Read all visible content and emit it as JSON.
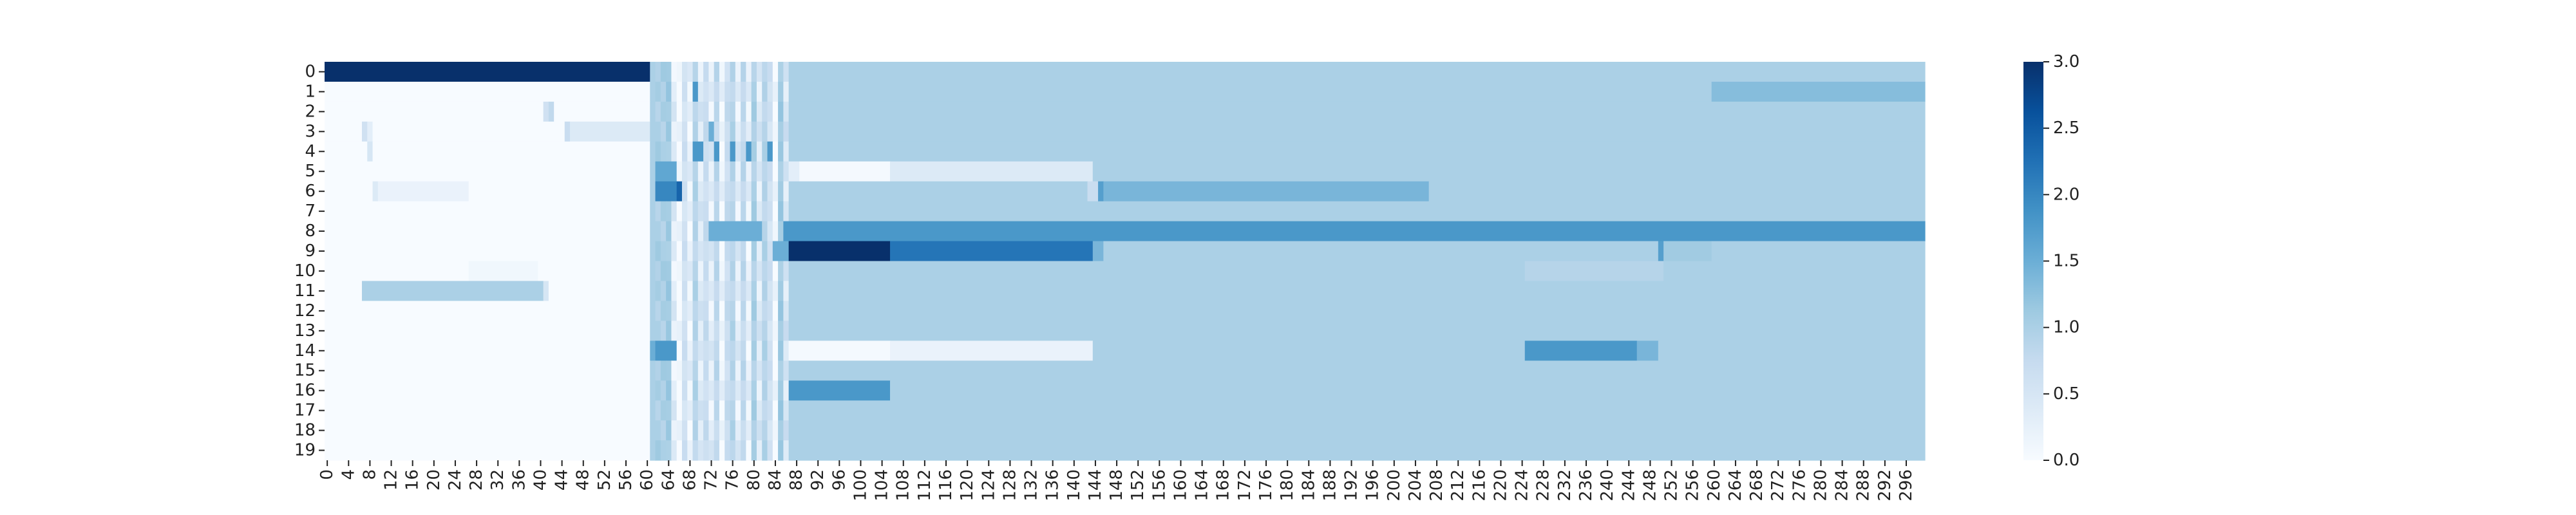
{
  "chart_data": {
    "type": "heatmap",
    "title": "",
    "xlabel": "",
    "ylabel": "",
    "n_rows": 20,
    "n_cols": 300,
    "row_labels": [
      "0",
      "1",
      "2",
      "3",
      "4",
      "5",
      "6",
      "7",
      "8",
      "9",
      "10",
      "11",
      "12",
      "13",
      "14",
      "15",
      "16",
      "17",
      "18",
      "19"
    ],
    "x_tick_labels": [
      "0",
      "4",
      "8",
      "12",
      "16",
      "20",
      "24",
      "28",
      "32",
      "36",
      "40",
      "44",
      "48",
      "52",
      "56",
      "60",
      "64",
      "68",
      "72",
      "76",
      "80",
      "84",
      "88",
      "92",
      "96",
      "100",
      "104",
      "108",
      "112",
      "116",
      "120",
      "124",
      "128",
      "132",
      "136",
      "140",
      "144",
      "148",
      "152",
      "156",
      "160",
      "164",
      "168",
      "172",
      "176",
      "180",
      "184",
      "188",
      "192",
      "196",
      "200",
      "204",
      "208",
      "212",
      "216",
      "220",
      "224",
      "228",
      "232",
      "236",
      "240",
      "244",
      "248",
      "252",
      "256",
      "260",
      "264",
      "268",
      "272",
      "276",
      "280",
      "284",
      "288",
      "292",
      "296"
    ],
    "vmin": 0,
    "vmax": 3,
    "colormap": "Blues",
    "colorbar": {
      "tick_values": [
        0,
        0.5,
        1,
        1.5,
        2,
        2.5,
        3
      ],
      "tick_labels": [
        "0.0",
        "0.5",
        "1.0",
        "1.5",
        "2.0",
        "2.5",
        "3.0"
      ]
    },
    "default_value": 1.0,
    "row_base": [
      {
        "row": 0,
        "segments": [
          [
            0,
            61,
            3.0
          ]
        ]
      },
      {
        "row": 1,
        "segments": [
          [
            0,
            61,
            0.0
          ],
          [
            260,
            300,
            1.3
          ]
        ]
      },
      {
        "row": 2,
        "segments": [
          [
            0,
            61,
            0.0
          ],
          [
            41,
            42,
            0.6
          ],
          [
            42,
            43,
            0.8
          ]
        ]
      },
      {
        "row": 3,
        "segments": [
          [
            0,
            61,
            0.0
          ],
          [
            7,
            8,
            0.6
          ],
          [
            8,
            9,
            0.3
          ],
          [
            45,
            46,
            0.7
          ],
          [
            46,
            61,
            0.4
          ]
        ]
      },
      {
        "row": 4,
        "segments": [
          [
            0,
            61,
            0.0
          ],
          [
            8,
            9,
            0.5
          ]
        ]
      },
      {
        "row": 5,
        "segments": [
          [
            0,
            61,
            0.0
          ],
          [
            87,
            89,
            0.3
          ],
          [
            89,
            106,
            0.05
          ],
          [
            106,
            144,
            0.4
          ]
        ]
      },
      {
        "row": 6,
        "segments": [
          [
            0,
            61,
            0.0
          ],
          [
            9,
            10,
            0.4
          ],
          [
            10,
            27,
            0.2
          ],
          [
            61,
            62,
            1.0
          ],
          [
            143,
            145,
            0.7
          ],
          [
            145,
            146,
            1.7
          ],
          [
            146,
            207,
            1.4
          ]
        ]
      },
      {
        "row": 7,
        "segments": [
          [
            0,
            61,
            0.0
          ]
        ]
      },
      {
        "row": 8,
        "segments": [
          [
            0,
            61,
            0.0
          ],
          [
            86,
            300,
            1.8
          ]
        ]
      },
      {
        "row": 9,
        "segments": [
          [
            0,
            61,
            0.0
          ],
          [
            87,
            106,
            3.0
          ],
          [
            106,
            144,
            2.2
          ],
          [
            144,
            146,
            1.4
          ],
          [
            250,
            251,
            1.7
          ],
          [
            251,
            260,
            1.1
          ]
        ]
      },
      {
        "row": 10,
        "segments": [
          [
            0,
            61,
            0.0
          ],
          [
            27,
            40,
            0.1
          ],
          [
            225,
            251,
            0.9
          ]
        ]
      },
      {
        "row": 11,
        "segments": [
          [
            0,
            61,
            0.0
          ],
          [
            7,
            41,
            1.0
          ],
          [
            41,
            42,
            0.5
          ]
        ]
      },
      {
        "row": 12,
        "segments": [
          [
            0,
            61,
            0.0
          ]
        ]
      },
      {
        "row": 13,
        "segments": [
          [
            0,
            61,
            0.0
          ]
        ]
      },
      {
        "row": 14,
        "segments": [
          [
            0,
            61,
            0.0
          ],
          [
            61,
            62,
            1.5
          ],
          [
            87,
            106,
            0.05
          ],
          [
            106,
            144,
            0.2
          ],
          [
            225,
            246,
            1.8
          ],
          [
            246,
            250,
            1.4
          ]
        ]
      },
      {
        "row": 15,
        "segments": [
          [
            0,
            61,
            0.0
          ]
        ]
      },
      {
        "row": 16,
        "segments": [
          [
            0,
            61,
            0.0
          ],
          [
            87,
            106,
            1.8
          ]
        ]
      },
      {
        "row": 17,
        "segments": [
          [
            0,
            61,
            0.0
          ]
        ]
      },
      {
        "row": 18,
        "segments": [
          [
            0,
            61,
            0.0
          ]
        ]
      },
      {
        "row": 19,
        "segments": [
          [
            0,
            61,
            0.0
          ]
        ]
      }
    ],
    "striped_block": {
      "cols": [
        62,
        86
      ],
      "column_pattern": [
        1.0,
        1.0,
        1.1,
        0.3,
        0.0,
        0.6,
        0.2,
        0.9,
        0.4,
        0.7,
        0.3,
        0.8,
        0.1,
        0.7,
        0.9,
        0.3,
        0.8,
        0.2,
        1.0,
        0.4,
        0.9,
        0.6,
        0.0,
        1.1,
        0.5
      ],
      "row_overrides": [
        {
          "row": 4,
          "cols": [
            69,
            70,
            73,
            76,
            79,
            83
          ],
          "value": 1.8
        },
        {
          "row": 5,
          "cols": [
            62,
            63,
            64,
            65
          ],
          "value": 1.6
        },
        {
          "row": 6,
          "cols": [
            62,
            63,
            64,
            65
          ],
          "value": 2.0
        },
        {
          "row": 6,
          "cols": [
            66
          ],
          "value": 2.4
        },
        {
          "row": 8,
          "cols": [
            72,
            73,
            74,
            75,
            76,
            77,
            78,
            79,
            80,
            81
          ],
          "value": 1.5
        },
        {
          "row": 9,
          "cols": [
            84,
            85,
            86
          ],
          "value": 1.5
        },
        {
          "row": 14,
          "cols": [
            62,
            63,
            64,
            65
          ],
          "value": 1.8
        },
        {
          "row": 1,
          "cols": [
            69
          ],
          "value": 1.8
        },
        {
          "row": 3,
          "cols": [
            72
          ],
          "value": 1.5
        }
      ]
    }
  }
}
